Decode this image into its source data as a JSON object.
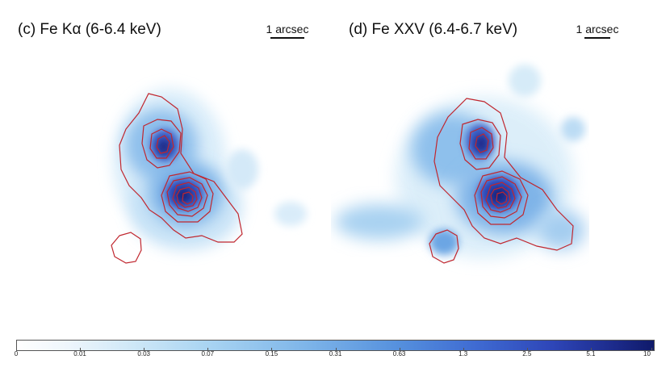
{
  "panels": [
    {
      "title": "(c) Fe Kα (6-6.4 keV)",
      "scale_label": "1 arcsec"
    },
    {
      "title": "(d) Fe XXV (6.4-6.7 keV)",
      "scale_label": "1 arcsec"
    }
  ],
  "colorbar": {
    "ticks": [
      "0",
      "0.01",
      "0.03",
      "0.07",
      "0.15",
      "0.31",
      "0.63",
      "1.3",
      "2.5",
      "5.1",
      "10"
    ],
    "colors": {
      "low": "#ffffff",
      "mid": "#5590dd",
      "high": "#0f1a6a",
      "contour": "#c0262e"
    }
  }
}
